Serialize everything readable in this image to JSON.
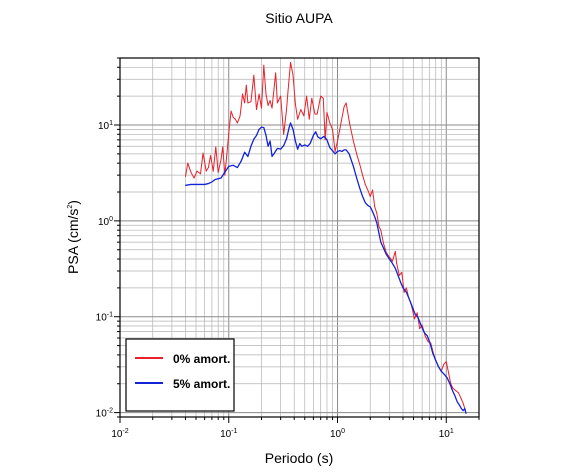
{
  "chart_data": {
    "type": "line",
    "title": "Sitio AUPA",
    "xlabel": "Periodo (s)",
    "ylabel_main": "PSA (cm/s",
    "ylabel_sup": "2",
    "ylabel_close": ")",
    "xscale": "log",
    "yscale": "log",
    "xlim": [
      0.01,
      20
    ],
    "ylim": [
      0.009,
      50
    ],
    "grid": true,
    "legend_position": "bottom-left",
    "x_ticks": [
      {
        "base": "10",
        "exp": "-2",
        "value": 0.01
      },
      {
        "base": "10",
        "exp": "-1",
        "value": 0.1
      },
      {
        "base": "10",
        "exp": "0",
        "value": 1
      },
      {
        "base": "10",
        "exp": "1",
        "value": 10
      }
    ],
    "y_ticks": [
      {
        "base": "10",
        "exp": "-2",
        "value": 0.01
      },
      {
        "base": "10",
        "exp": "-1",
        "value": 0.1
      },
      {
        "base": "10",
        "exp": "0",
        "value": 1
      },
      {
        "base": "10",
        "exp": "1",
        "value": 10
      }
    ],
    "series": [
      {
        "name": "0% amort.",
        "color": "#e8212a",
        "points": [
          [
            0.04,
            2.9
          ],
          [
            0.042,
            4.0
          ],
          [
            0.045,
            3.2
          ],
          [
            0.048,
            2.8
          ],
          [
            0.051,
            3.3
          ],
          [
            0.055,
            3.1
          ],
          [
            0.058,
            5.1
          ],
          [
            0.062,
            3.3
          ],
          [
            0.065,
            3.6
          ],
          [
            0.068,
            4.8
          ],
          [
            0.072,
            3.3
          ],
          [
            0.076,
            5.9
          ],
          [
            0.08,
            3.2
          ],
          [
            0.085,
            4.4
          ],
          [
            0.088,
            5.9
          ],
          [
            0.092,
            3.0
          ],
          [
            0.096,
            4.9
          ],
          [
            0.1,
            8.2
          ],
          [
            0.105,
            14.0
          ],
          [
            0.11,
            12.0
          ],
          [
            0.115,
            11.5
          ],
          [
            0.12,
            10.5
          ],
          [
            0.127,
            12.4
          ],
          [
            0.134,
            21.0
          ],
          [
            0.14,
            17.0
          ],
          [
            0.145,
            26.0
          ],
          [
            0.15,
            17.0
          ],
          [
            0.16,
            17.5
          ],
          [
            0.17,
            33.0
          ],
          [
            0.18,
            14.5
          ],
          [
            0.19,
            21.0
          ],
          [
            0.2,
            15.0
          ],
          [
            0.21,
            42.0
          ],
          [
            0.22,
            21.0
          ],
          [
            0.23,
            16.0
          ],
          [
            0.24,
            18.0
          ],
          [
            0.25,
            15.0
          ],
          [
            0.27,
            35.0
          ],
          [
            0.28,
            17.0
          ],
          [
            0.3,
            20.0
          ],
          [
            0.32,
            8.0
          ],
          [
            0.34,
            14.5
          ],
          [
            0.35,
            22.0
          ],
          [
            0.37,
            45.0
          ],
          [
            0.39,
            33.0
          ],
          [
            0.41,
            16.5
          ],
          [
            0.43,
            11.5
          ],
          [
            0.46,
            14.5
          ],
          [
            0.49,
            12.5
          ],
          [
            0.52,
            20.0
          ],
          [
            0.55,
            11.5
          ],
          [
            0.58,
            19.0
          ],
          [
            0.62,
            13.0
          ],
          [
            0.65,
            13.0
          ],
          [
            0.7,
            20.0
          ],
          [
            0.74,
            19.0
          ],
          [
            0.77,
            7.0
          ],
          [
            0.8,
            13.5
          ],
          [
            0.85,
            10.5
          ],
          [
            0.9,
            9.0
          ],
          [
            0.95,
            5.3
          ],
          [
            1.0,
            6.8
          ],
          [
            1.05,
            9.0
          ],
          [
            1.1,
            12.0
          ],
          [
            1.15,
            15.5
          ],
          [
            1.2,
            17.0
          ],
          [
            1.3,
            10.0
          ],
          [
            1.4,
            6.8
          ],
          [
            1.5,
            5.0
          ],
          [
            1.6,
            3.9
          ],
          [
            1.7,
            3.0
          ],
          [
            1.8,
            2.4
          ],
          [
            1.9,
            2.1
          ],
          [
            2.0,
            1.8
          ],
          [
            2.1,
            2.1
          ],
          [
            2.2,
            1.4
          ],
          [
            2.3,
            1.2
          ],
          [
            2.4,
            0.88
          ],
          [
            2.5,
            0.8
          ],
          [
            2.65,
            0.58
          ],
          [
            2.8,
            0.47
          ],
          [
            3.0,
            0.42
          ],
          [
            3.2,
            0.38
          ],
          [
            3.4,
            0.48
          ],
          [
            3.5,
            0.36
          ],
          [
            3.7,
            0.27
          ],
          [
            3.9,
            0.29
          ],
          [
            4.1,
            0.18
          ],
          [
            4.3,
            0.2
          ],
          [
            4.5,
            0.16
          ],
          [
            4.8,
            0.13
          ],
          [
            5.1,
            0.095
          ],
          [
            5.4,
            0.11
          ],
          [
            5.7,
            0.075
          ],
          [
            6.0,
            0.082
          ],
          [
            6.4,
            0.063
          ],
          [
            6.8,
            0.055
          ],
          [
            7.2,
            0.053
          ],
          [
            7.6,
            0.042
          ],
          [
            8.0,
            0.035
          ],
          [
            8.5,
            0.03
          ],
          [
            9.0,
            0.027
          ],
          [
            9.5,
            0.032
          ],
          [
            10.0,
            0.034
          ],
          [
            10.5,
            0.026
          ],
          [
            11.0,
            0.02
          ],
          [
            11.5,
            0.018
          ],
          [
            12.2,
            0.017
          ],
          [
            13.0,
            0.016
          ],
          [
            13.7,
            0.014
          ],
          [
            14.3,
            0.0125
          ],
          [
            15.0,
            0.0105
          ]
        ]
      },
      {
        "name": "5% amort.",
        "color": "#1323d6",
        "points": [
          [
            0.04,
            2.35
          ],
          [
            0.045,
            2.4
          ],
          [
            0.05,
            2.4
          ],
          [
            0.055,
            2.4
          ],
          [
            0.06,
            2.4
          ],
          [
            0.065,
            2.45
          ],
          [
            0.07,
            2.55
          ],
          [
            0.075,
            2.7
          ],
          [
            0.08,
            2.75
          ],
          [
            0.085,
            2.8
          ],
          [
            0.09,
            3.1
          ],
          [
            0.1,
            3.7
          ],
          [
            0.11,
            3.8
          ],
          [
            0.12,
            3.6
          ],
          [
            0.13,
            4.2
          ],
          [
            0.14,
            5.2
          ],
          [
            0.15,
            4.7
          ],
          [
            0.16,
            6.0
          ],
          [
            0.17,
            7.1
          ],
          [
            0.18,
            7.8
          ],
          [
            0.19,
            9.0
          ],
          [
            0.2,
            9.5
          ],
          [
            0.21,
            9.4
          ],
          [
            0.22,
            7.8
          ],
          [
            0.23,
            6.0
          ],
          [
            0.24,
            6.8
          ],
          [
            0.25,
            4.7
          ],
          [
            0.26,
            5.0
          ],
          [
            0.28,
            5.7
          ],
          [
            0.3,
            5.6
          ],
          [
            0.32,
            6.1
          ],
          [
            0.34,
            7.2
          ],
          [
            0.36,
            9.5
          ],
          [
            0.37,
            10.5
          ],
          [
            0.39,
            9.0
          ],
          [
            0.41,
            6.8
          ],
          [
            0.43,
            5.6
          ],
          [
            0.45,
            6.4
          ],
          [
            0.47,
            6.0
          ],
          [
            0.5,
            6.2
          ],
          [
            0.53,
            6.0
          ],
          [
            0.56,
            6.4
          ],
          [
            0.6,
            7.8
          ],
          [
            0.63,
            8.5
          ],
          [
            0.66,
            7.5
          ],
          [
            0.7,
            7.2
          ],
          [
            0.75,
            7.6
          ],
          [
            0.8,
            7.0
          ],
          [
            0.85,
            5.8
          ],
          [
            0.9,
            5.4
          ],
          [
            0.95,
            5.0
          ],
          [
            1.0,
            5.3
          ],
          [
            1.05,
            5.4
          ],
          [
            1.1,
            5.3
          ],
          [
            1.15,
            5.5
          ],
          [
            1.2,
            5.5
          ],
          [
            1.28,
            5.0
          ],
          [
            1.4,
            3.7
          ],
          [
            1.5,
            2.8
          ],
          [
            1.6,
            2.2
          ],
          [
            1.7,
            1.8
          ],
          [
            1.8,
            1.55
          ],
          [
            1.9,
            1.45
          ],
          [
            2.0,
            1.4
          ],
          [
            2.1,
            1.25
          ],
          [
            2.2,
            1.1
          ],
          [
            2.3,
            0.95
          ],
          [
            2.4,
            0.75
          ],
          [
            2.5,
            0.6
          ],
          [
            2.65,
            0.52
          ],
          [
            2.8,
            0.45
          ],
          [
            3.0,
            0.4
          ],
          [
            3.2,
            0.36
          ],
          [
            3.4,
            0.32
          ],
          [
            3.6,
            0.27
          ],
          [
            3.8,
            0.23
          ],
          [
            4.0,
            0.2
          ],
          [
            4.3,
            0.18
          ],
          [
            4.6,
            0.15
          ],
          [
            4.9,
            0.125
          ],
          [
            5.2,
            0.105
          ],
          [
            5.5,
            0.098
          ],
          [
            5.9,
            0.08
          ],
          [
            6.3,
            0.068
          ],
          [
            6.7,
            0.063
          ],
          [
            7.1,
            0.053
          ],
          [
            7.5,
            0.042
          ],
          [
            8.0,
            0.035
          ],
          [
            8.5,
            0.03
          ],
          [
            9.0,
            0.027
          ],
          [
            9.6,
            0.025
          ],
          [
            10.2,
            0.023
          ],
          [
            10.8,
            0.02
          ],
          [
            11.4,
            0.017
          ],
          [
            12.0,
            0.015
          ],
          [
            12.6,
            0.013
          ],
          [
            13.2,
            0.012
          ],
          [
            13.8,
            0.011
          ],
          [
            14.3,
            0.0105
          ],
          [
            14.8,
            0.011
          ],
          [
            15.2,
            0.0098
          ]
        ]
      }
    ]
  }
}
